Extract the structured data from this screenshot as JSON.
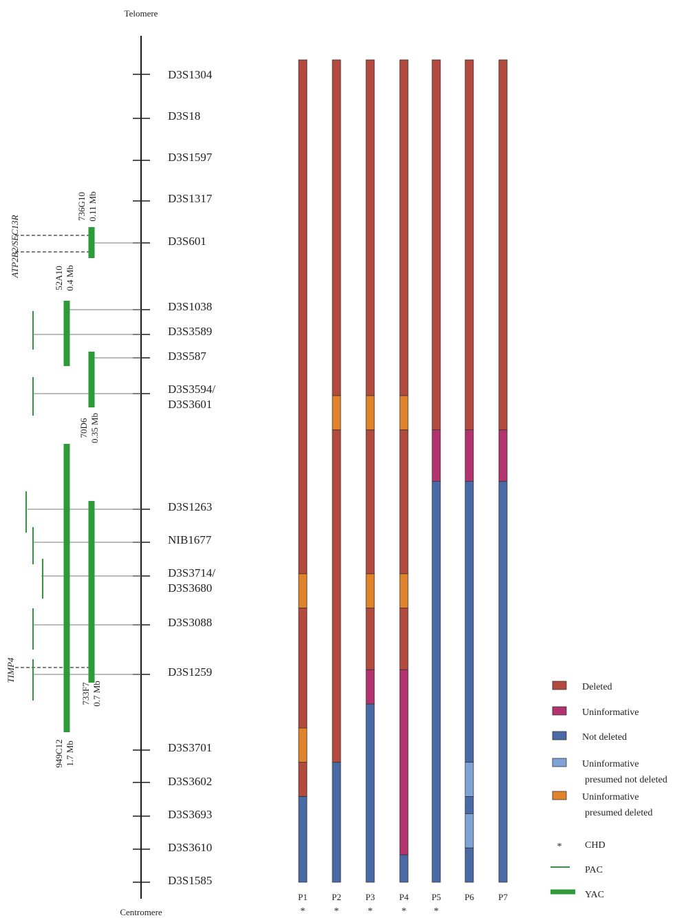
{
  "axis": {
    "top_label": "Telomere",
    "bottom_label": "Centromere"
  },
  "colors": {
    "deleted": "#b24a3e",
    "uninformative": "#b3336e",
    "not_deleted": "#4a6aa5",
    "uninformative_not_deleted": "#7fa3d4",
    "uninformative_deleted": "#e0832a",
    "chd": "#e8843a",
    "clone": "#2e9a3a",
    "axis": "#1a1a1a"
  },
  "markers": [
    {
      "lines": [
        "D3S1304"
      ],
      "tick": true
    },
    {
      "lines": [
        "D3S18"
      ],
      "tick": true
    },
    {
      "lines": [
        "D3S1597"
      ],
      "tick": true
    },
    {
      "lines": [
        "D3S1317"
      ],
      "tick": true
    },
    {
      "lines": [
        "D3S601"
      ],
      "tick": true
    },
    {
      "lines": [
        "D3S1038"
      ],
      "tick": true
    },
    {
      "lines": [
        "D3S3589"
      ],
      "tick": true
    },
    {
      "lines": [
        "D3S587"
      ],
      "tick": true
    },
    {
      "lines": [
        "D3S3594/",
        "D3S3601"
      ],
      "tick": true
    },
    {
      "lines": [
        "D3S1263"
      ],
      "tick": true
    },
    {
      "lines": [
        "NIB1677"
      ],
      "tick": true
    },
    {
      "lines": [
        "D3S3714/",
        "D3S3680"
      ],
      "tick": true
    },
    {
      "lines": [
        "D3S3088"
      ],
      "tick": true
    },
    {
      "lines": [
        "D3S1259"
      ],
      "tick": true
    },
    {
      "lines": [
        "D3S3701"
      ],
      "tick": true
    },
    {
      "lines": [
        "D3S3602"
      ],
      "tick": true
    },
    {
      "lines": [
        "D3S3693"
      ],
      "tick": true
    },
    {
      "lines": [
        "D3S3610"
      ],
      "tick": true
    },
    {
      "lines": [
        "D3S1585"
      ],
      "tick": true
    }
  ],
  "clones": [
    {
      "name": "736G10",
      "size": "0.11 Mb"
    },
    {
      "name": "52A10",
      "size": "0.4 Mb"
    },
    {
      "name": "70D6",
      "size": "0.35 Mb"
    },
    {
      "name": "733F7",
      "size": "0.7 Mb"
    },
    {
      "name": "949C12",
      "size": "1.7 Mb"
    }
  ],
  "genes": [
    "ATP2B2/SEC13R",
    "TIMP4"
  ],
  "patients": [
    {
      "label": "P1",
      "chd": true
    },
    {
      "label": "P2",
      "chd": true
    },
    {
      "label": "P3",
      "chd": true
    },
    {
      "label": "P4",
      "chd": true
    },
    {
      "label": "P5",
      "chd": true
    },
    {
      "label": "P6",
      "chd": false
    },
    {
      "label": "P7",
      "chd": false
    }
  ],
  "status_columns": [
    [
      "deleted",
      "deleted",
      "deleted",
      "deleted",
      "deleted",
      "deleted",
      "deleted",
      "deleted",
      "deleted",
      "deleted",
      "deleted",
      "deleted",
      "deleted",
      "deleted",
      "deleted",
      "deleted",
      "deleted",
      "deleted",
      "deleted",
      "deleted",
      "deleted",
      "deleted",
      "deleted",
      "deleted",
      "deleted",
      "deleted",
      "deleted",
      "deleted",
      "deleted",
      "deleted",
      "deleted",
      "deleted",
      "deleted",
      "deleted",
      "deleted",
      "deleted",
      "deleted",
      "deleted",
      "deleted",
      "deleted",
      "deleted",
      "deleted",
      "deleted",
      "deleted",
      "deleted",
      "deleted",
      "deleted",
      "deleted",
      "deleted",
      "deleted",
      "deleted",
      "deleted",
      "deleted",
      "deleted",
      "deleted",
      "deleted",
      "deleted",
      "deleted",
      "deleted",
      "deleted",
      "deleted",
      "deleted",
      "deleted",
      "deleted",
      "deleted",
      "deleted",
      "deleted",
      "deleted",
      "deleted",
      "deleted",
      "deleted",
      "deleted",
      "deleted",
      "deleted",
      "deleted",
      "deleted",
      "deleted",
      "deleted",
      "deleted",
      "deleted",
      "deleted",
      "deleted",
      "deleted",
      "deleted",
      "deleted",
      "deleted",
      "deleted",
      "deleted",
      "deleted",
      "deleted",
      "deleted",
      "deleted",
      "deleted",
      "deleted",
      "deleted",
      "deleted",
      "deleted"
    ],
    []
  ],
  "patient_segments": [
    [
      [
        "deleted",
        0,
        15
      ],
      [
        "uninformative_deleted",
        15,
        16
      ],
      [
        "deleted",
        16,
        19.5
      ],
      [
        "uninformative_deleted",
        19.5,
        20.5
      ],
      [
        "deleted",
        20.5,
        21.5
      ],
      [
        "not_deleted",
        21.5,
        24
      ]
    ],
    [
      [
        "deleted",
        0,
        9.8
      ],
      [
        "uninformative_deleted",
        9.8,
        10.8
      ],
      [
        "deleted",
        10.8,
        20.5
      ],
      [
        "not_deleted",
        20.5,
        24
      ]
    ],
    [
      [
        "deleted",
        0,
        9.8
      ],
      [
        "uninformative_deleted",
        9.8,
        10.8
      ],
      [
        "deleted",
        10.8,
        15
      ],
      [
        "uninformative_deleted",
        15,
        16
      ],
      [
        "deleted",
        16,
        17.8
      ],
      [
        "uninformative",
        17.8,
        18.8
      ],
      [
        "not_deleted",
        18.8,
        24
      ]
    ],
    [
      [
        "deleted",
        0,
        9.8
      ],
      [
        "uninformative_deleted",
        9.8,
        10.8
      ],
      [
        "deleted",
        10.8,
        15
      ],
      [
        "uninformative_deleted",
        15,
        16
      ],
      [
        "deleted",
        16,
        17.8
      ],
      [
        "uninformative",
        17.8,
        23.2
      ],
      [
        "not_deleted",
        23.2,
        24
      ]
    ],
    [
      [
        "deleted",
        0,
        10.8
      ],
      [
        "uninformative",
        10.8,
        12.3
      ],
      [
        "not_deleted",
        12.3,
        24
      ]
    ],
    [
      [
        "deleted",
        0,
        10.8
      ],
      [
        "uninformative",
        10.8,
        12.3
      ],
      [
        "not_deleted",
        12.3,
        20.5
      ],
      [
        "uninformative_not_deleted",
        20.5,
        21.5
      ],
      [
        "not_deleted",
        21.5,
        22
      ],
      [
        "uninformative_not_deleted",
        22,
        23
      ],
      [
        "not_deleted",
        23,
        24
      ]
    ],
    [
      [
        "deleted",
        0,
        10.8
      ],
      [
        "uninformative",
        10.8,
        12.3
      ],
      [
        "not_deleted",
        12.3,
        24
      ]
    ]
  ],
  "legend": [
    {
      "key": "deleted",
      "label_lines": [
        "Deleted"
      ],
      "kind": "box"
    },
    {
      "key": "uninformative",
      "label_lines": [
        "Uninformative"
      ],
      "kind": "box"
    },
    {
      "key": "not_deleted",
      "label_lines": [
        "Not deleted"
      ],
      "kind": "box"
    },
    {
      "key": "uninformative_not_deleted",
      "label_lines": [
        "Uninformative",
        "presumed not deleted"
      ],
      "kind": "box"
    },
    {
      "key": "uninformative_deleted",
      "label_lines": [
        "Uninformative",
        "presumed deleted"
      ],
      "kind": "box"
    },
    {
      "key": "chd",
      "label_lines": [
        "CHD"
      ],
      "kind": "star"
    },
    {
      "key": "clone",
      "label_lines": [
        "PAC"
      ],
      "kind": "thin"
    },
    {
      "key": "clone",
      "label_lines": [
        "YAC"
      ],
      "kind": "thick"
    }
  ]
}
